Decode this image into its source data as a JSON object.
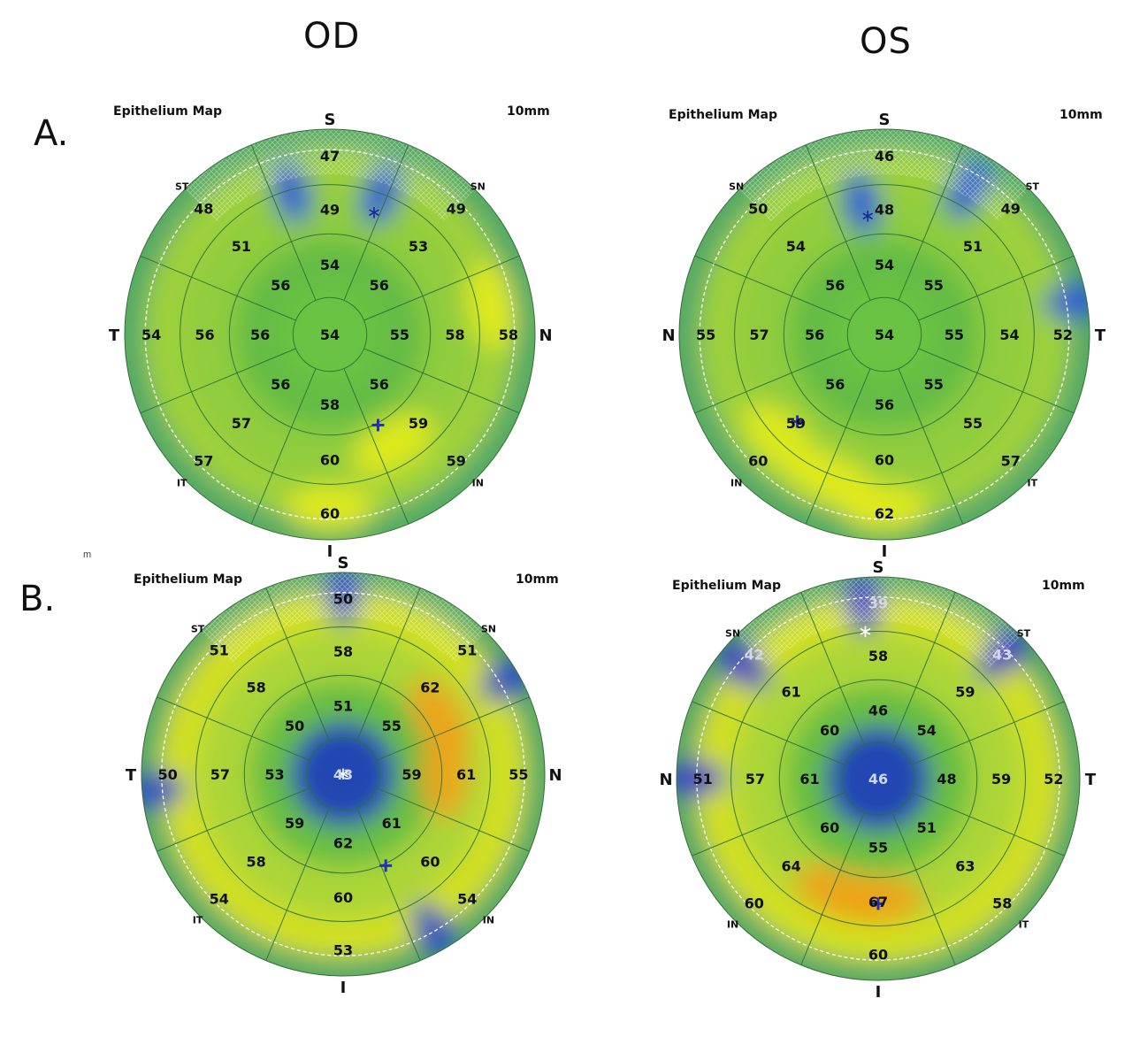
{
  "headers": {
    "left": "OD",
    "right": "OS"
  },
  "rows": [
    {
      "label": "A."
    },
    {
      "label": "B."
    }
  ],
  "stray_mark": "m",
  "maps": [
    {
      "id": "A-OD",
      "title": "Epithelium Map",
      "scale": "10mm",
      "sectors": [
        "S",
        "N",
        "I",
        "T",
        "SN",
        "IN",
        "IT",
        "ST"
      ],
      "center": "54",
      "values": [
        "54",
        "56",
        "55",
        "56",
        "58",
        "56",
        "56",
        "56",
        "49",
        "53",
        "58",
        "59",
        "60",
        "57",
        "56",
        "51",
        "47",
        "49",
        "58",
        "59",
        "60",
        "57",
        "54",
        "48"
      ],
      "colors": {
        "bg": "#5cba45",
        "ring1": "#6cc343",
        "ring2": "#8fcc3e",
        "ring3": "#a9d53a",
        "hot": "#e6ec1a",
        "cold": "#2e8f86",
        "blue": "#2a5bd6"
      },
      "blue_spots": [
        {
          "a": 20,
          "r": 0.73
        },
        {
          "a": 345,
          "r": 0.72
        }
      ],
      "hot_spots": [
        {
          "a": 150,
          "r": 0.62
        },
        {
          "a": 180,
          "r": 0.85
        },
        {
          "a": 80,
          "r": 0.8
        }
      ],
      "star": {
        "a": 20,
        "r": 0.63
      },
      "cross": {
        "a": 152,
        "r": 0.5
      }
    },
    {
      "id": "A-OS",
      "title": "Epithelium Map",
      "scale": "10mm",
      "sectors": [
        "S",
        "T",
        "I",
        "N",
        "ST",
        "IT",
        "IN",
        "SN"
      ],
      "center": "54",
      "values": [
        "54",
        "55",
        "55",
        "55",
        "56",
        "56",
        "56",
        "56",
        "48",
        "51",
        "54",
        "55",
        "60",
        "59",
        "57",
        "54",
        "46",
        "49",
        "52",
        "57",
        "62",
        "60",
        "55",
        "50"
      ],
      "colors": {
        "bg": "#5cba45",
        "ring1": "#6cc343",
        "ring2": "#8fcc3e",
        "ring3": "#a9d53a",
        "hot": "#e6ec1a",
        "cold": "#2e8f86",
        "blue": "#2a5bd6"
      },
      "blue_spots": [
        {
          "a": 350,
          "r": 0.65
        },
        {
          "a": 30,
          "r": 0.82
        },
        {
          "a": 80,
          "r": 0.95
        }
      ],
      "hot_spots": [
        {
          "a": 200,
          "r": 0.75
        },
        {
          "a": 180,
          "r": 0.85
        },
        {
          "a": 225,
          "r": 0.72
        }
      ],
      "star": {
        "a": 352,
        "r": 0.58
      },
      "cross": {
        "a": 225,
        "r": 0.6
      }
    },
    {
      "id": "B-OD",
      "title": "Epithelium Map",
      "scale": "10mm",
      "sectors": [
        "S",
        "N",
        "I",
        "T",
        "SN",
        "IN",
        "IT",
        "ST"
      ],
      "center": "43",
      "values": [
        "51",
        "55",
        "59",
        "61",
        "62",
        "59",
        "53",
        "50",
        "58",
        "62",
        "61",
        "60",
        "60",
        "58",
        "57",
        "58",
        "50",
        "51",
        "55",
        "54",
        "53",
        "54",
        "50",
        "51"
      ],
      "colors": {
        "bg": "#5cba45",
        "ring1": "#1f3fb8",
        "ring2": "#a9d53a",
        "ring3": "#e6e61a",
        "hot": "#f0a21a",
        "cold": "#2e8f86",
        "blue": "#2a4bc6"
      },
      "blue_spots": [
        {
          "a": 0,
          "r": 0.9
        },
        {
          "a": 60,
          "r": 0.95
        },
        {
          "a": 265,
          "r": 0.95
        },
        {
          "a": 150,
          "r": 0.9
        }
      ],
      "hot_spots": [
        {
          "a": 60,
          "r": 0.55
        },
        {
          "a": 90,
          "r": 0.5
        }
      ],
      "star": {
        "a": 0,
        "r": 0.0
      },
      "cross": {
        "a": 155,
        "r": 0.5
      }
    },
    {
      "id": "B-OS",
      "title": "Epithelium Map",
      "scale": "10mm",
      "sectors": [
        "S",
        "T",
        "I",
        "N",
        "ST",
        "IT",
        "IN",
        "SN"
      ],
      "center": "46",
      "values": [
        "46",
        "54",
        "48",
        "51",
        "55",
        "60",
        "61",
        "60",
        "58",
        "59",
        "59",
        "63",
        "67",
        "64",
        "57",
        "61",
        "39",
        "43",
        "52",
        "58",
        "60",
        "60",
        "51",
        "42"
      ],
      "colors": {
        "bg": "#5cba45",
        "ring1": "#1f3fb8",
        "ring2": "#a9d53a",
        "ring3": "#e6e61a",
        "hot": "#f0a21a",
        "cold": "#2e8f86",
        "blue": "#3a3ec8"
      },
      "blue_spots": [
        {
          "a": 355,
          "r": 0.88
        },
        {
          "a": 310,
          "r": 0.88
        },
        {
          "a": 45,
          "r": 0.88
        },
        {
          "a": 270,
          "r": 0.92
        }
      ],
      "hot_spots": [
        {
          "a": 180,
          "r": 0.6
        },
        {
          "a": 200,
          "r": 0.6
        }
      ],
      "star": {
        "a": 355,
        "r": 0.73
      },
      "cross": {
        "a": 180,
        "r": 0.62
      }
    }
  ]
}
